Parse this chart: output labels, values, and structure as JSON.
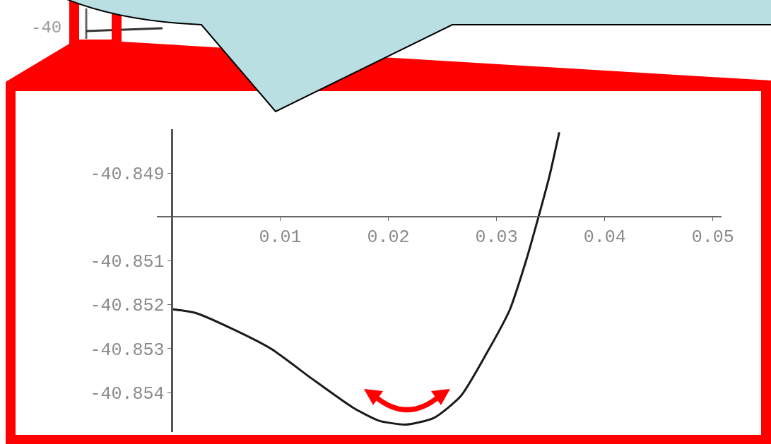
{
  "chart_data": {
    "type": "line",
    "x": [
      0,
      0.0022,
      0.0054,
      0.0092,
      0.0129,
      0.0167,
      0.0191,
      0.0216,
      0.0242,
      0.0267,
      0.0291,
      0.0312,
      0.0327,
      0.0339,
      0.0349,
      0.0358
    ],
    "series": [
      {
        "color": "#1a1a1a",
        "values": [
          -40.8521,
          -40.85219,
          -40.85253,
          -40.85301,
          -40.85368,
          -40.85434,
          -40.85464,
          -40.85473,
          -40.85458,
          -40.85408,
          -40.8531,
          -40.85213,
          -40.85102,
          -40.84998,
          -40.84906,
          -40.84807
        ]
      }
    ],
    "xlim": [
      -0.0014,
      0.0508
    ],
    "ylim": [
      -40.8549,
      -40.848
    ],
    "xticks": [
      {
        "value": 0,
        "label": null
      },
      0.01,
      0.02,
      0.03,
      0.04,
      0.05
    ],
    "yticks": [
      -40.849,
      {
        "value": -40.85,
        "label": null
      },
      -40.851,
      -40.852,
      -40.853,
      -40.854
    ],
    "annotations": [
      "-40"
    ]
  }
}
